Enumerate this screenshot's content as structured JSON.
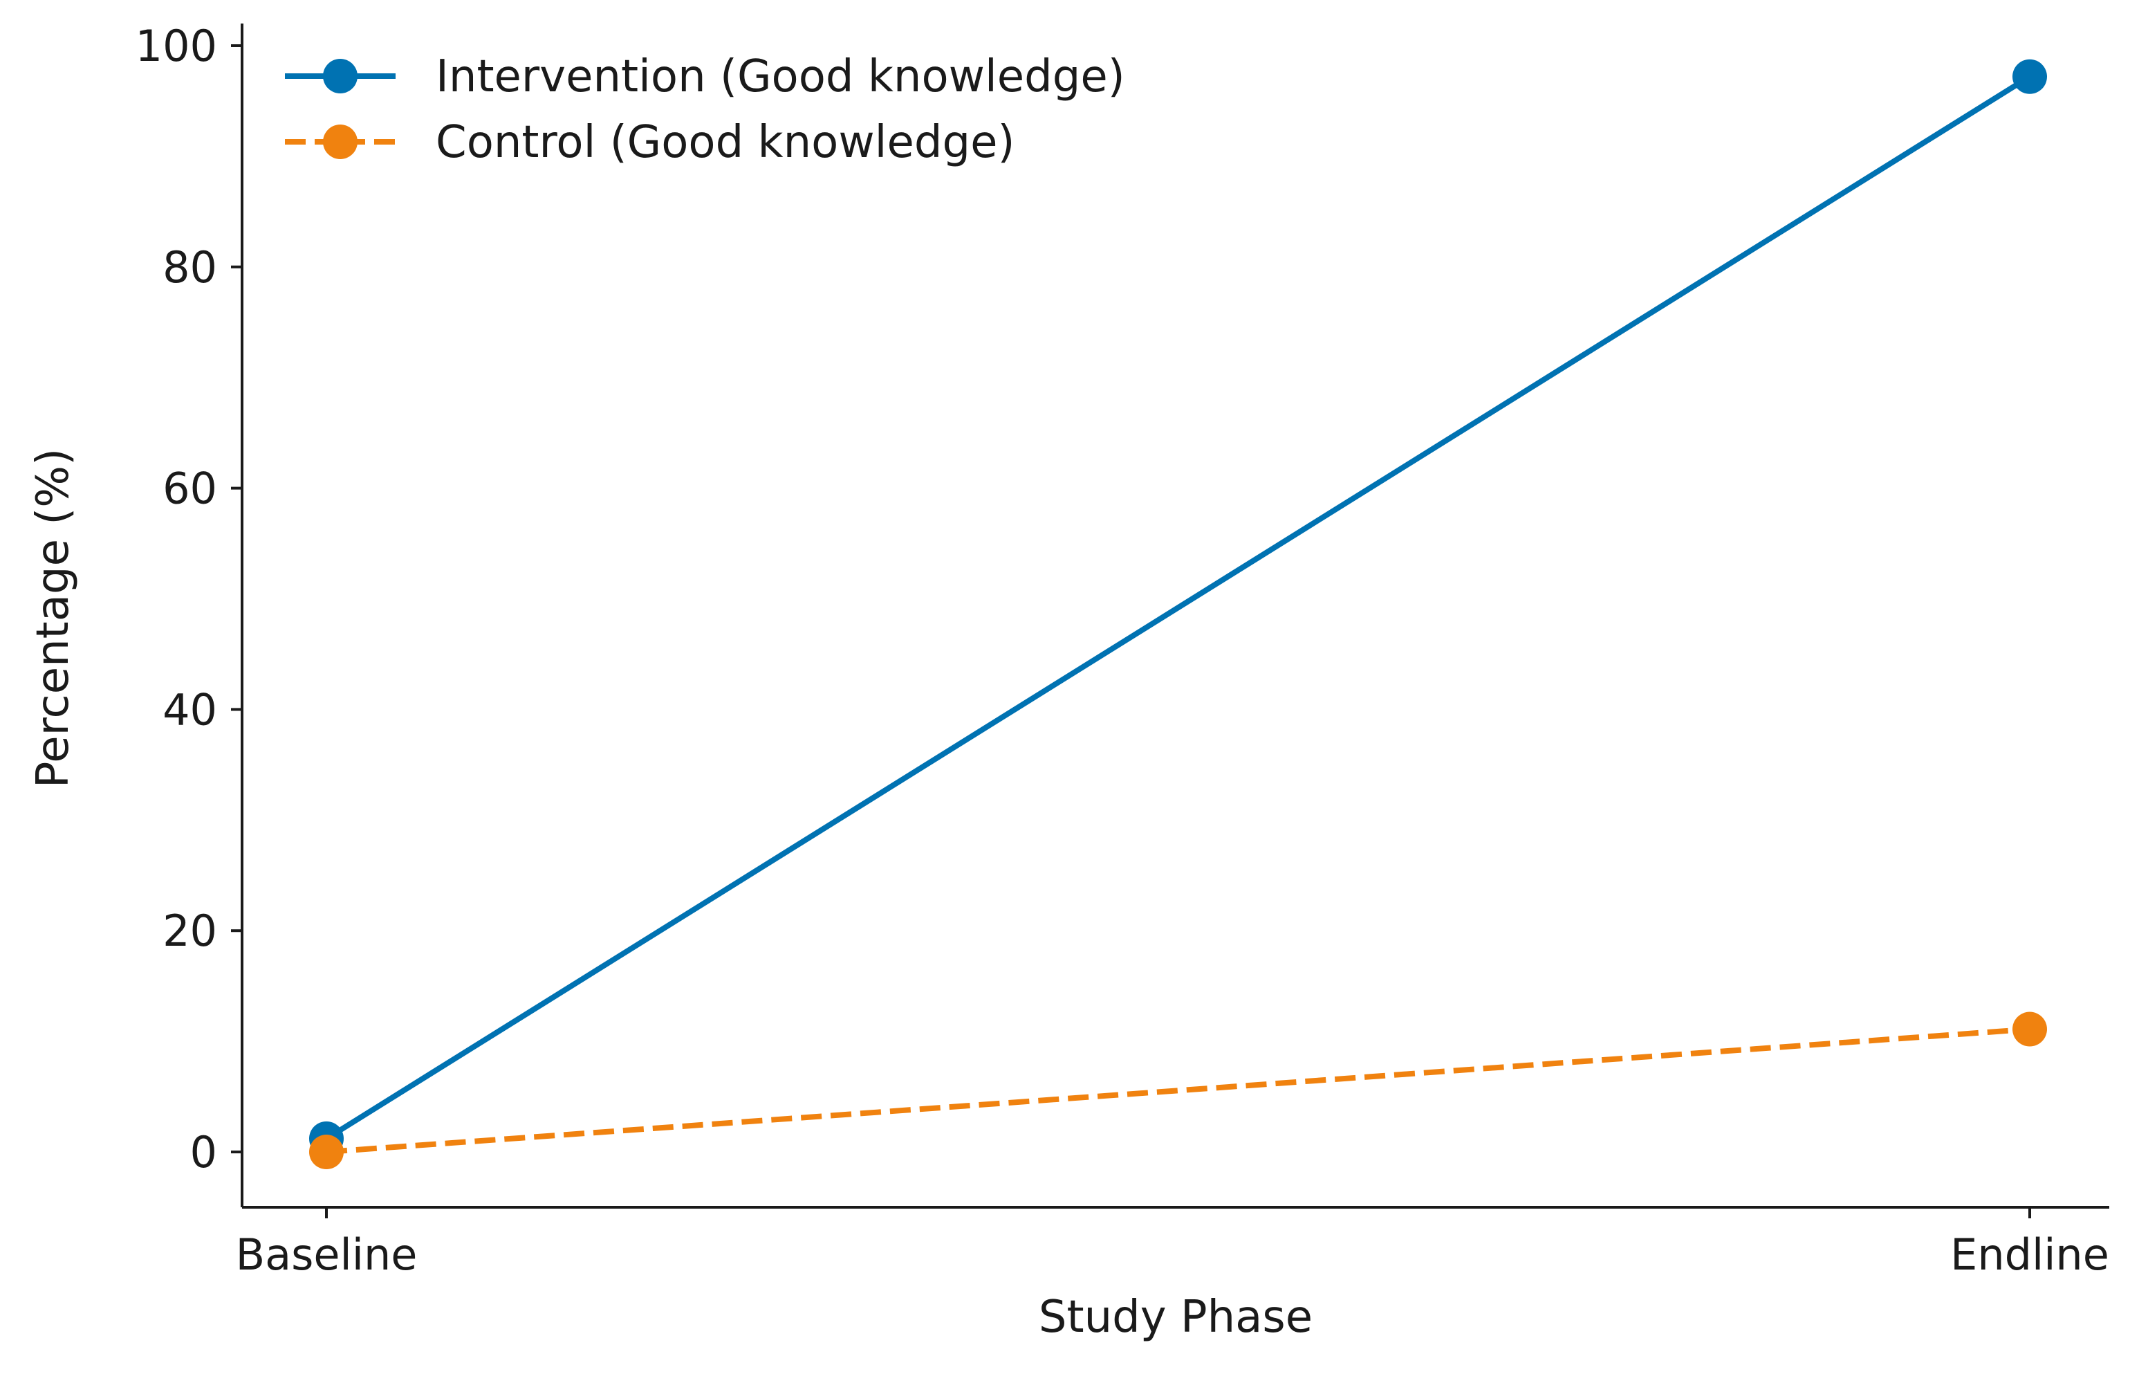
{
  "chart_data": {
    "type": "line",
    "title": "",
    "xlabel": "Study Phase",
    "ylabel": "Percentage (%)",
    "categories": [
      "Baseline",
      "Endline"
    ],
    "ylim": [
      -5,
      101.5
    ],
    "yticks": [
      0,
      20,
      40,
      60,
      80,
      100
    ],
    "grid": false,
    "legend_position": "top-left",
    "series": [
      {
        "name": "Intervention (Good knowledge)",
        "values": [
          1.2,
          97.2
        ],
        "color": "#0072B2",
        "line_style": "solid",
        "marker": "circle"
      },
      {
        "name": "Control (Good knowledge)",
        "values": [
          0.0,
          11.1
        ],
        "color": "#F0820F",
        "line_style": "dashed",
        "marker": "circle"
      }
    ]
  }
}
